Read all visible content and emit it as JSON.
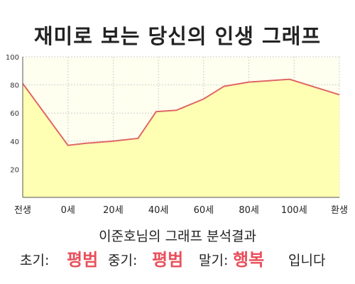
{
  "title": "재미로 보는 당신의 인생 그래프",
  "chart_data": {
    "type": "area",
    "x_labels": [
      "전생",
      "0세",
      "20세",
      "40세",
      "60세",
      "80세",
      "100세",
      "환생"
    ],
    "x": [
      -20,
      0,
      20,
      40,
      60,
      80,
      100,
      120
    ],
    "points": [
      {
        "x": -20,
        "y": 81
      },
      {
        "x": 0,
        "y": 37
      },
      {
        "x": 8,
        "y": 38.5
      },
      {
        "x": 20,
        "y": 40
      },
      {
        "x": 31,
        "y": 42
      },
      {
        "x": 39,
        "y": 61
      },
      {
        "x": 48,
        "y": 62
      },
      {
        "x": 60,
        "y": 70
      },
      {
        "x": 69,
        "y": 79
      },
      {
        "x": 80,
        "y": 82
      },
      {
        "x": 98,
        "y": 84
      },
      {
        "x": 120,
        "y": 73
      }
    ],
    "yticks": [
      20,
      40,
      60,
      80,
      100
    ],
    "ylim": [
      0,
      100
    ],
    "xlim": [
      -20,
      120
    ],
    "colors": {
      "line": "#e06666",
      "fill": "#ffffb3",
      "plot_bg": "#fffff0",
      "grid": "#cfcfcf"
    }
  },
  "result": {
    "name_line": "이준호님의 그래프 분석결과",
    "early_label": "초기:",
    "early_value": "평범",
    "middle_label": "중기:",
    "middle_value": "평범",
    "late_label": "말기:",
    "late_value": "행복",
    "ending": "입니다"
  }
}
